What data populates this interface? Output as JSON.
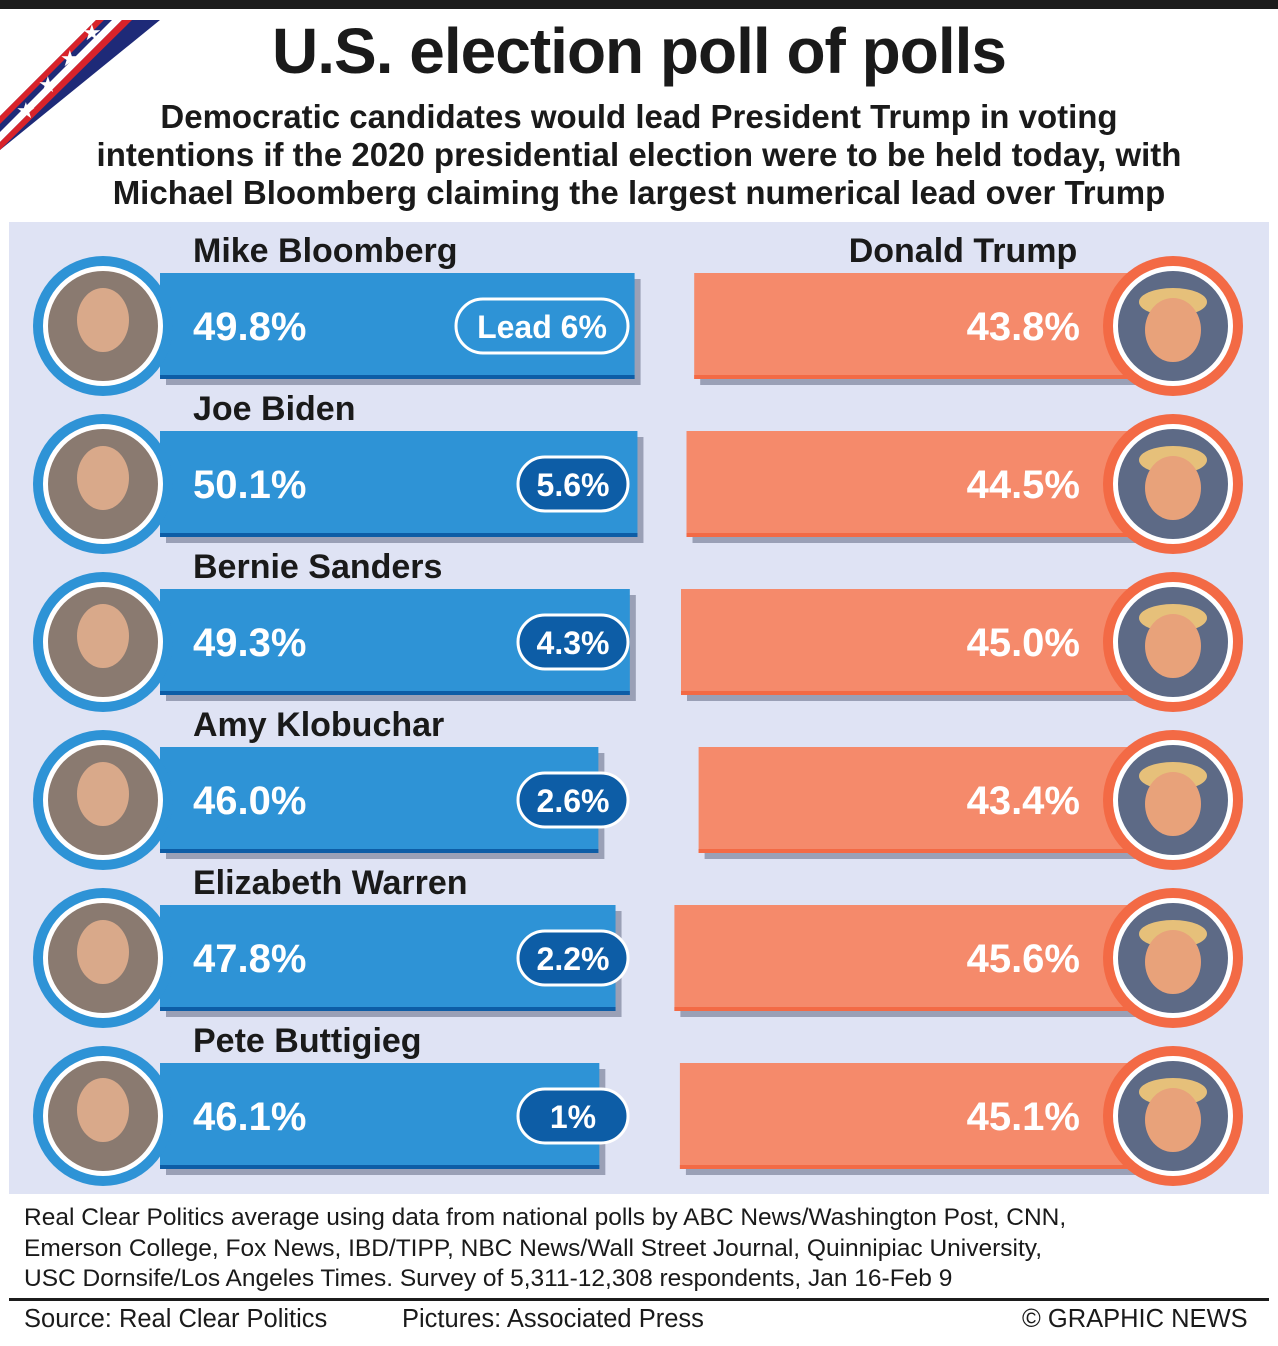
{
  "header": {
    "title": "U.S. election poll of polls",
    "subtitle_lines": [
      "Democratic candidates would lead President Trump in voting",
      "intentions if the 2020 presidential election were to be held today, with",
      "Michael Bloomberg claiming the largest numerical lead over Trump"
    ]
  },
  "colors": {
    "democrat": "#2e93d6",
    "democrat_dark": "#0d5da6",
    "republican": "#f36a45",
    "republican_light": "#f58a6b",
    "panel": "#dfe3f4"
  },
  "chart_data": {
    "type": "bar",
    "title": "U.S. election poll of polls",
    "unit": "%",
    "opponent": "Donald Trump",
    "series": [
      {
        "name": "Democratic candidate",
        "values": [
          49.8,
          50.1,
          49.3,
          46.0,
          47.8,
          46.1
        ]
      },
      {
        "name": "Donald Trump",
        "values": [
          43.8,
          44.5,
          45.0,
          43.4,
          45.6,
          45.1
        ]
      }
    ],
    "rows": [
      {
        "candidate": "Mike Bloomberg",
        "dem_label": "49.8%",
        "trump_label": "43.8%",
        "lead_label": "Lead 6%"
      },
      {
        "candidate": "Joe Biden",
        "dem_label": "50.1%",
        "trump_label": "44.5%",
        "lead_label": "5.6%"
      },
      {
        "candidate": "Bernie Sanders",
        "dem_label": "49.3%",
        "trump_label": "45.0%",
        "lead_label": "4.3%"
      },
      {
        "candidate": "Amy Klobuchar",
        "dem_label": "46.0%",
        "trump_label": "43.4%",
        "lead_label": "2.6%"
      },
      {
        "candidate": "Elizabeth Warren",
        "dem_label": "47.8%",
        "trump_label": "45.6%",
        "lead_label": "2.2%"
      },
      {
        "candidate": "Pete Buttigieg",
        "dem_label": "46.1%",
        "trump_label": "45.1%",
        "lead_label": "1%"
      }
    ]
  },
  "notes": [
    "Real Clear Politics average using data from national polls by ABC News/Washington Post, CNN,",
    "Emerson College, Fox News, IBD/TIPP, NBC News/Wall Street Journal, Quinnipiac University,",
    "USC Dornsife/Los Angeles Times. Survey of 5,311-12,308 respondents, Jan 16-Feb 9"
  ],
  "footer": {
    "source": "Source: Real Clear Politics",
    "pictures": "Pictures: Associated Press",
    "credit": "© GRAPHIC NEWS"
  }
}
